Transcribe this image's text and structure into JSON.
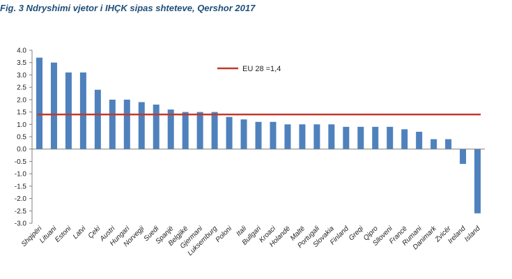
{
  "figure": {
    "title": "Fig. 3 Ndryshimi vjetor i IHÇK sipas shteteve, Qershor 2017"
  },
  "chart_data": {
    "type": "bar",
    "title": "",
    "xlabel": "",
    "ylabel": "",
    "ylim": [
      -3.0,
      4.0
    ],
    "yticks": [
      4.0,
      3.5,
      3.0,
      2.5,
      2.0,
      1.5,
      1.0,
      0.5,
      0.0,
      -0.5,
      -1.0,
      -1.5,
      -2.0,
      -2.5,
      -3.0
    ],
    "ytick_labels": [
      "4.0",
      "3.5",
      "3.0",
      "2.5",
      "2.0",
      "1.5",
      "1.0",
      "0.5",
      "0.0",
      "-0.5",
      "-1.0",
      "-1.5",
      "-2.0",
      "-2.5",
      "-3.0"
    ],
    "grid": false,
    "categories": [
      "Shqipëri",
      "Lituani",
      "Estoni",
      "Latvi",
      "Çeki",
      "Austri",
      "Hungari",
      "Norvegji",
      "Suedi",
      "Spanjë",
      "Belgjikë",
      "Gjermani",
      "Luksemburg",
      "Poloni",
      "Itali",
      "Bullgari",
      "Kroaci",
      "Holandë",
      "Maltë",
      "Portugali",
      "Slovakia",
      "Finland",
      "Greqi",
      "Qipro",
      "Slloveni",
      "Francë",
      "Rumani",
      "Danimark",
      "Zvicër",
      "Ireland",
      "Island"
    ],
    "values": [
      3.7,
      3.5,
      3.1,
      3.1,
      2.4,
      2.0,
      2.0,
      1.9,
      1.8,
      1.6,
      1.5,
      1.5,
      1.5,
      1.3,
      1.2,
      1.1,
      1.1,
      1.0,
      1.0,
      1.0,
      1.0,
      0.9,
      0.9,
      0.9,
      0.9,
      0.8,
      0.7,
      0.4,
      0.4,
      -0.6,
      -2.6
    ],
    "reference_line": {
      "label": "EU 28 =1,4",
      "value": 1.4
    },
    "legend_position": "top-center",
    "colors": {
      "bars": "#4f81bd",
      "reference_line": "#c0392b",
      "axis": "#7f7f7f"
    }
  }
}
